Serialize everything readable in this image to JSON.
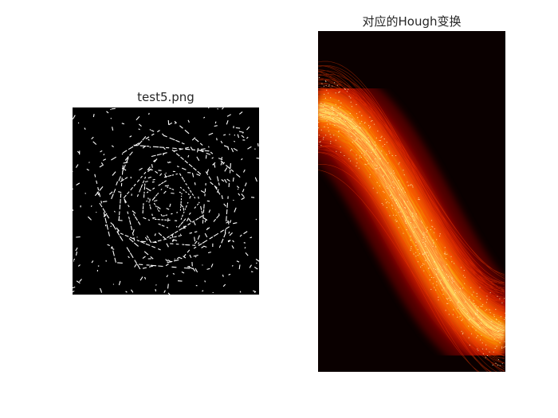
{
  "figure": {
    "left_panel": {
      "title": "test5.png",
      "image_kind": "binary edge map",
      "colormap": "gray"
    },
    "right_panel": {
      "title": "对应的Hough变换",
      "image_kind": "Hough transform accumulator",
      "colormap": "hot"
    }
  }
}
